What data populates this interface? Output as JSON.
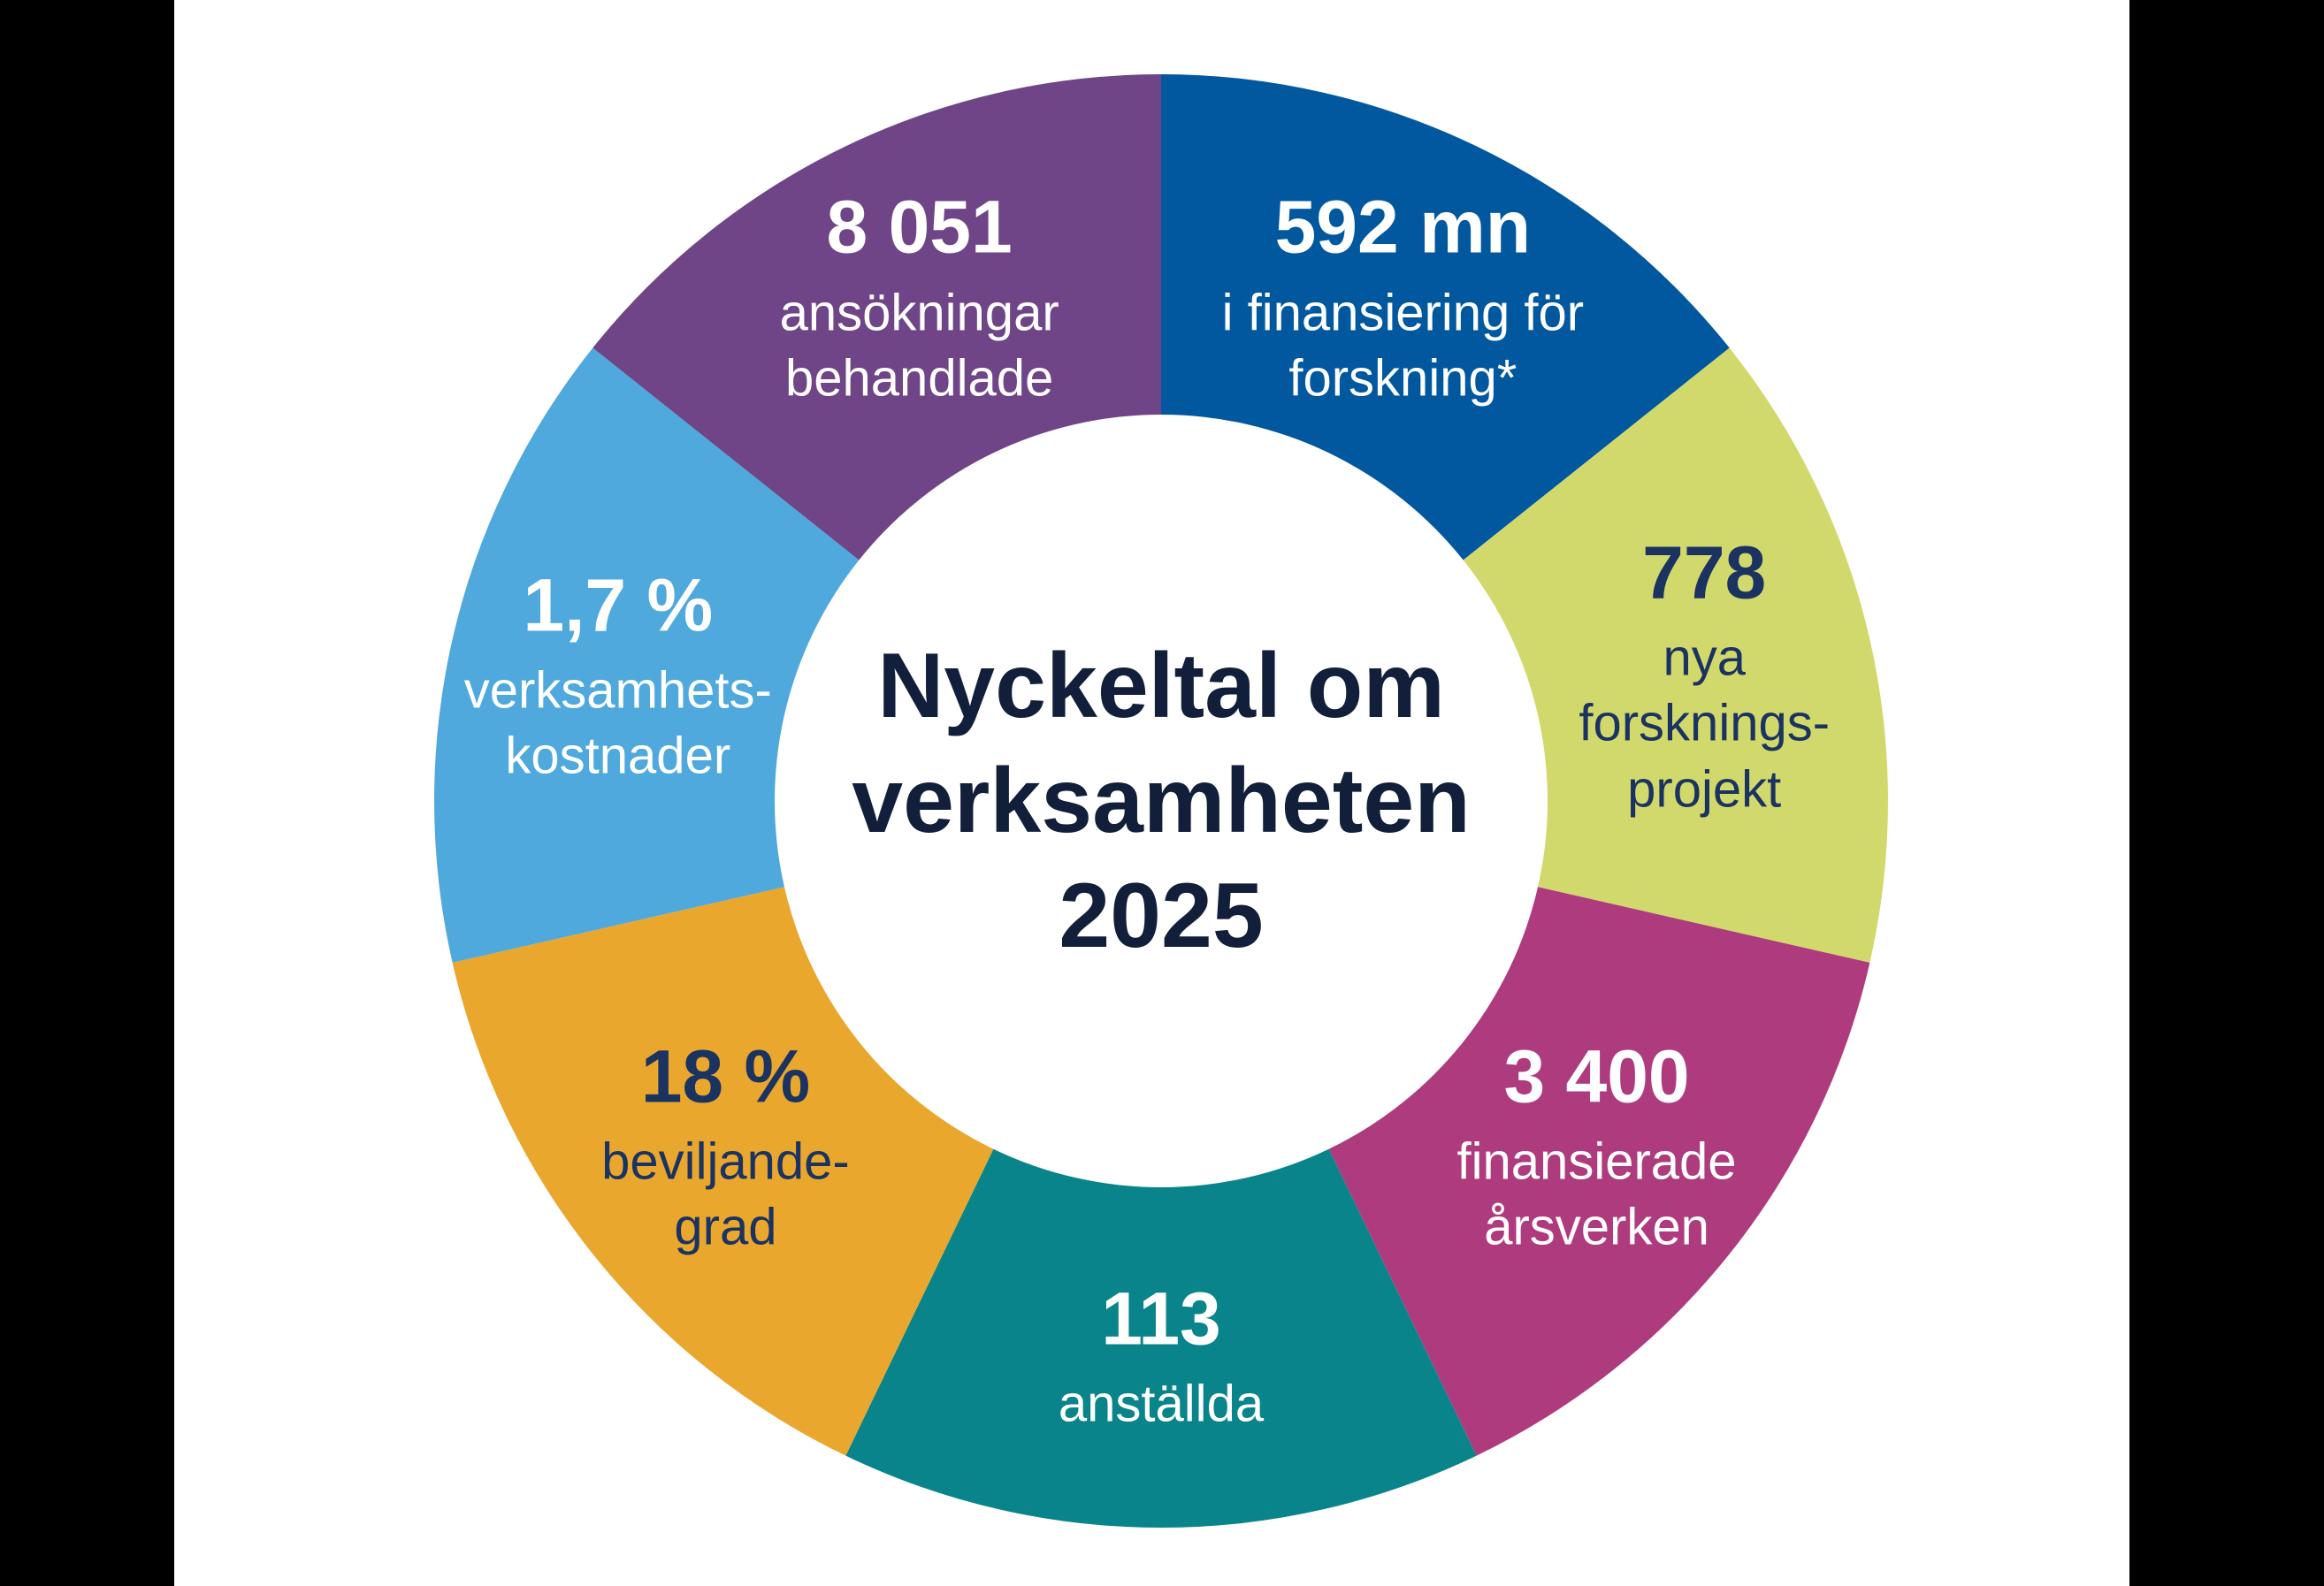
{
  "page": {
    "background_color": "#000000",
    "canvas_color": "#FFFFFF",
    "title_color": "#121F3A",
    "label_navy_color": "#1B3361"
  },
  "chart_data": {
    "type": "pie",
    "variant": "donut",
    "title": "Nyckeltal om verksamheten 2025",
    "title_multiline": "Nyckeltal om\nverksamheten\n2025",
    "legend_position": "none",
    "equal_segments": true,
    "segment_count": 7,
    "start_angle_deg": 0,
    "direction": "clockwise",
    "segments": [
      {
        "id": "finansiering",
        "value_label": "592 mn",
        "desc": "i finansiering för forskning*",
        "desc_multiline": "i finansiering för\nforskning*",
        "color": "#02589F",
        "text_color": "#FFFFFF"
      },
      {
        "id": "forskningsprojekt",
        "value_label": "778",
        "desc": "nya forsknings­projekt",
        "desc_multiline": "nya\nforsknings-\nprojekt",
        "color": "#D2D96C",
        "text_color": "#1B3361"
      },
      {
        "id": "arsverken",
        "value_label": "3 400",
        "desc": "finansierade årsverken",
        "desc_multiline": "finansierade\nårsverken",
        "color": "#AF3B7F",
        "text_color": "#FFFFFF"
      },
      {
        "id": "anstallda",
        "value_label": "113",
        "desc": "anställda",
        "desc_multiline": "anställda",
        "color": "#0A848B",
        "text_color": "#FFFFFF"
      },
      {
        "id": "beviljandegrad",
        "value_label": "18 %",
        "desc": "beviljande­grad",
        "desc_multiline": "beviljande-\ngrad",
        "color": "#E9A72E",
        "text_color": "#1B3361"
      },
      {
        "id": "verksamhetskostnader",
        "value_label": "1,7 %",
        "desc": "verksamhets­kostnader",
        "desc_multiline": "verksamhets-\nkostnader",
        "color": "#4FA9DC",
        "text_color": "#FFFFFF"
      },
      {
        "id": "ansokningar",
        "value_label": "8 051",
        "desc": "ansökningar behandlade",
        "desc_multiline": "ansökningar\nbehandlade",
        "color": "#6F4587",
        "text_color": "#FFFFFF"
      }
    ]
  }
}
